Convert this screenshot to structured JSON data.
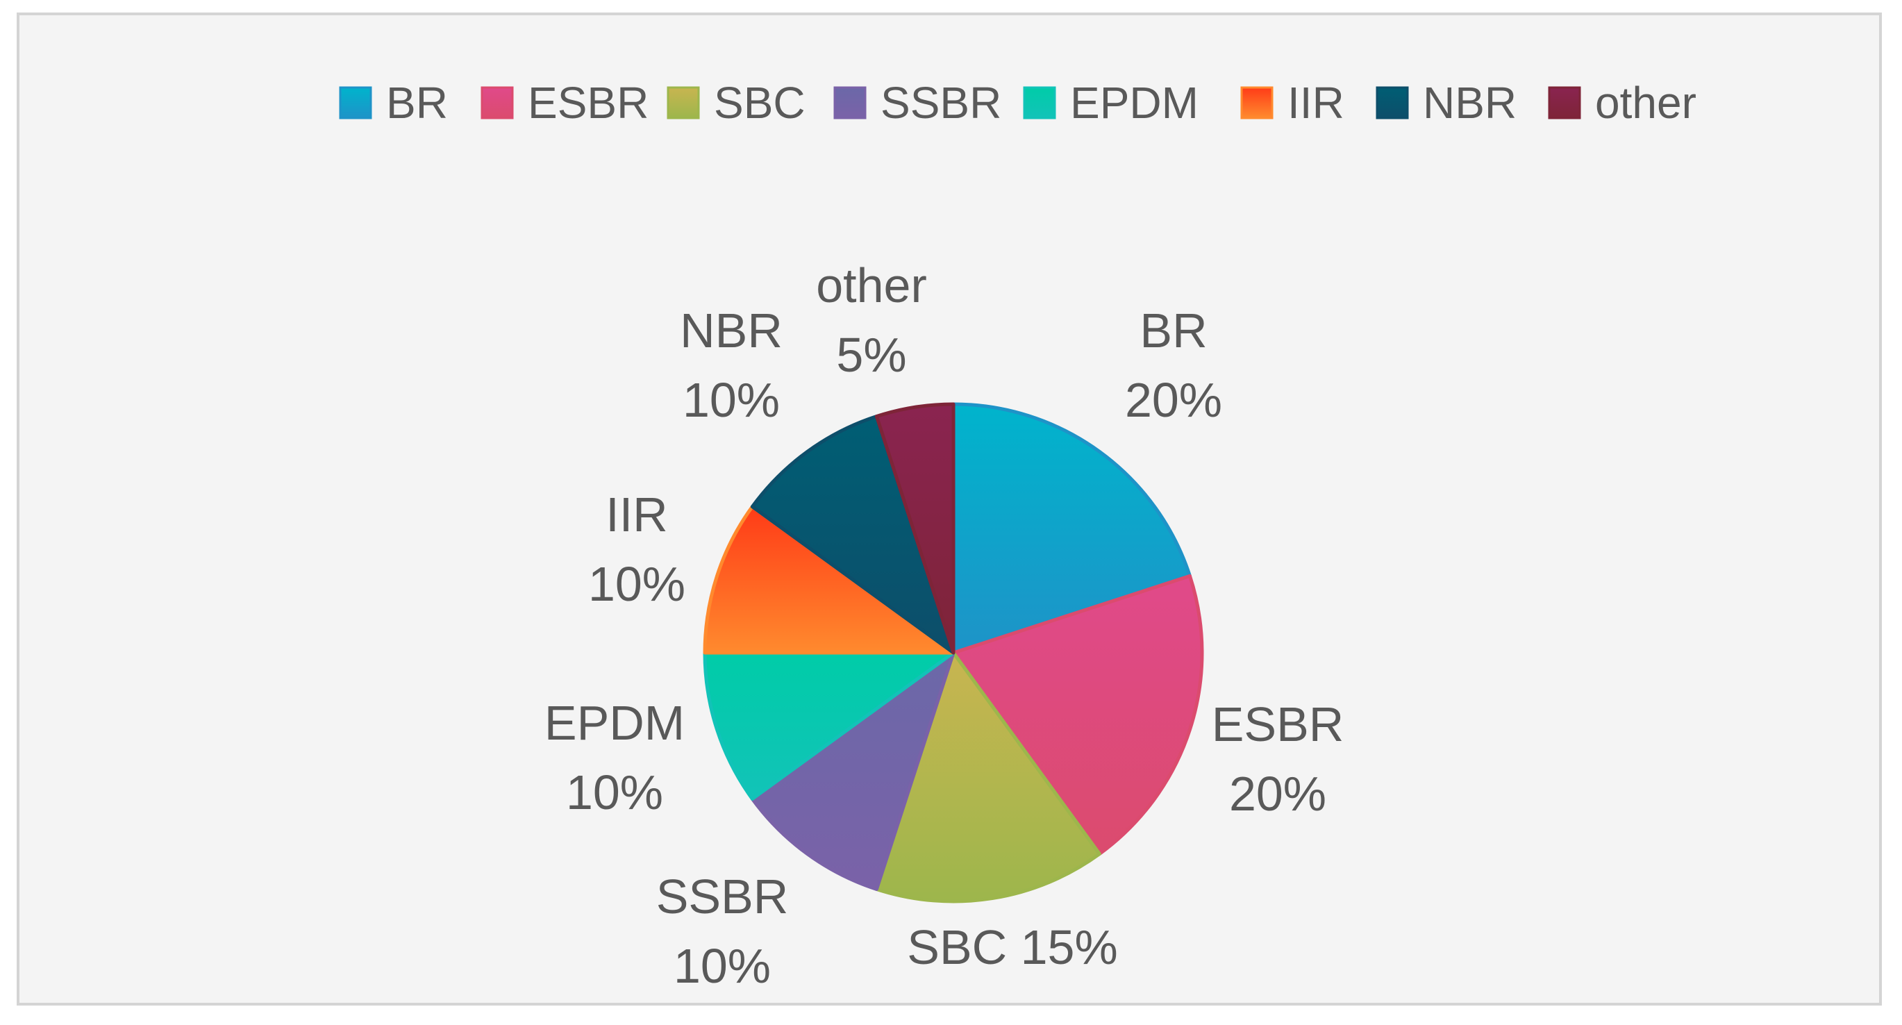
{
  "chart_data": {
    "type": "pie",
    "categories": [
      "BR",
      "ESBR",
      "SBC",
      "SSBR",
      "EPDM",
      "IIR",
      "NBR",
      "other"
    ],
    "values": [
      20,
      20,
      15,
      10,
      10,
      10,
      10,
      5
    ],
    "value_labels": [
      "20%",
      "20%",
      "15%",
      "10%",
      "10%",
      "10%",
      "10%",
      "5%"
    ],
    "colors": [
      "#1E93C8",
      "#DB4B6E",
      "#9DB64C",
      "#7A62A8",
      "#12C3B8",
      "#FF8A2E",
      "#0D4E6A",
      "#7E2438"
    ],
    "colors_top": [
      "#00B4CC",
      "#E04A8A",
      "#C8B550",
      "#6B68A8",
      "#00CCA8",
      "#FF3B17",
      "#005E74",
      "#8A2450"
    ],
    "legend": {
      "position": "top",
      "entries": [
        "BR",
        "ESBR",
        "SBC",
        "SSBR",
        "EPDM",
        "IIR",
        "NBR",
        "other"
      ]
    },
    "title": "",
    "start_angle_deg": 0,
    "direction": "clockwise"
  }
}
